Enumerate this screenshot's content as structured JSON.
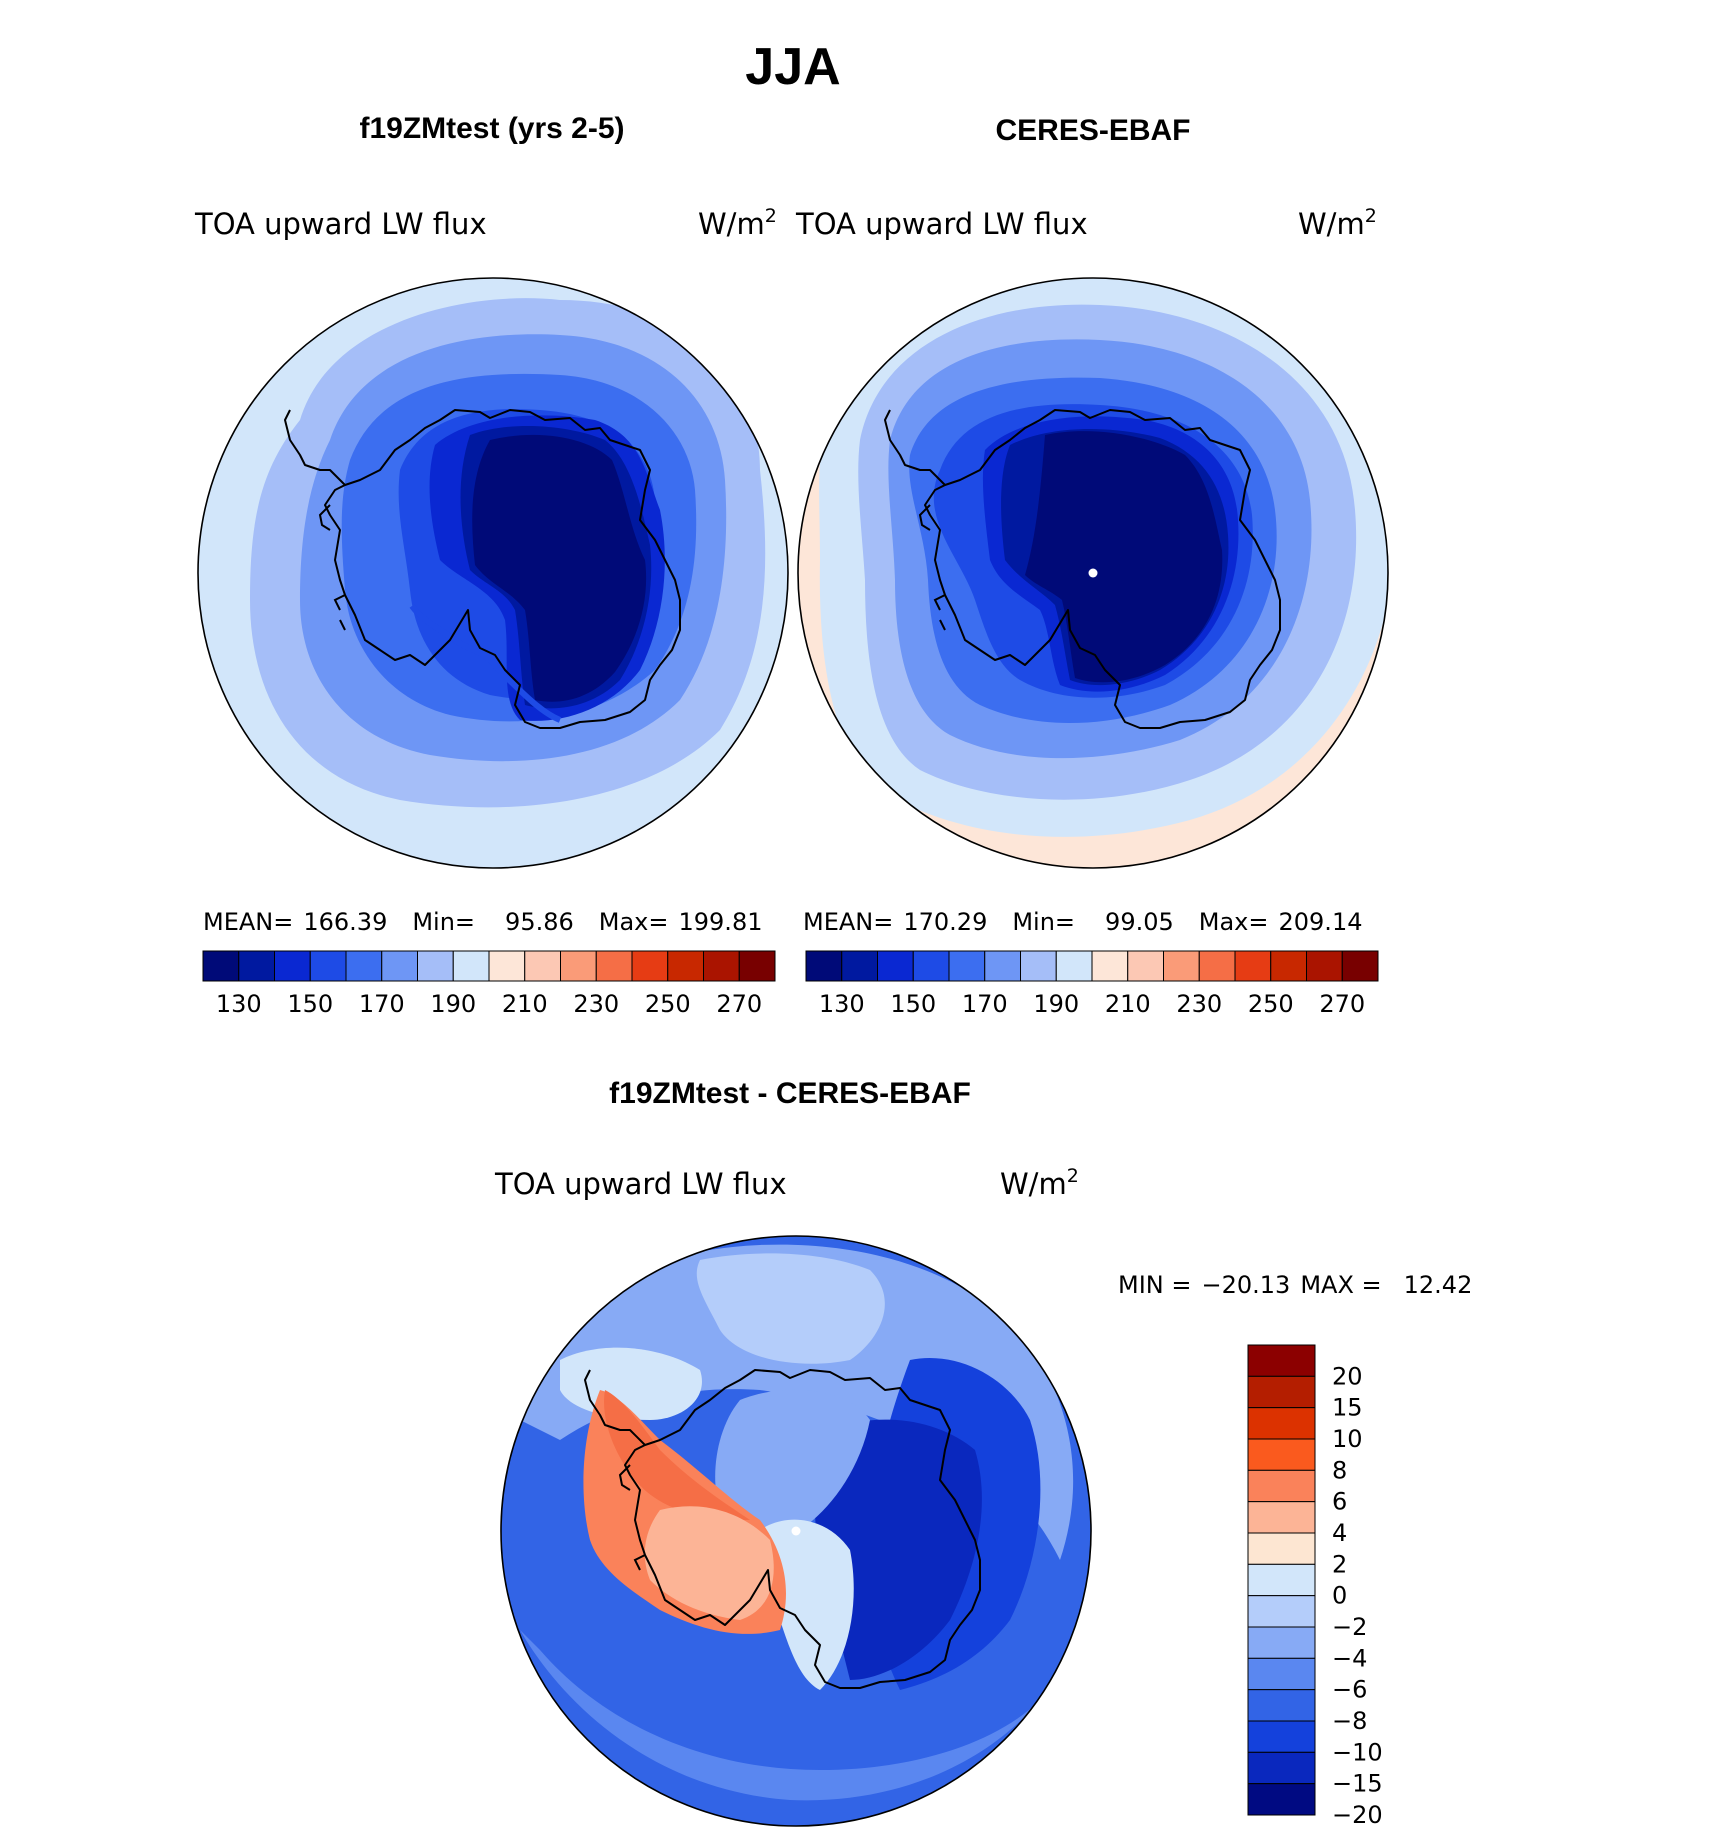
{
  "chart_data": [
    {
      "type": "heatmap",
      "figure_title": "JJA",
      "title": "f19ZMtest (yrs 2-5)",
      "left_label": "TOA upward LW flux",
      "units": "W/m",
      "units_exp": "2",
      "stats": {
        "mean_label": "MEAN=",
        "mean": "166.39",
        "min_label": "Min=",
        "min": "95.86",
        "max_label": "Max=",
        "max": "199.81"
      },
      "contour_levels": [
        130,
        140,
        150,
        160,
        170,
        180,
        190,
        200,
        210,
        220,
        230,
        240,
        250,
        260,
        270
      ],
      "colorbar_ticks": [
        "130",
        "150",
        "170",
        "190",
        "210",
        "230",
        "250",
        "270"
      ],
      "colors": [
        "#000a78",
        "#0019a0",
        "#0a28d2",
        "#1e4be6",
        "#3c6ef0",
        "#6e96f5",
        "#a5bef8",
        "#d2e6fa",
        "#fde6d8",
        "#fcc8b4",
        "#fa9b78",
        "#f56e46",
        "#e63c14",
        "#c82800",
        "#aa1400",
        "#780000"
      ],
      "field_bands": [
        {
          "value": "<130",
          "color": "#000a78"
        },
        {
          "value": "130-140",
          "color": "#0019a0"
        },
        {
          "value": "140-150",
          "color": "#0a28d2"
        },
        {
          "value": "150-160",
          "color": "#1e4be6"
        },
        {
          "value": "160-170",
          "color": "#3c6ef0"
        },
        {
          "value": "170-180",
          "color": "#6e96f5"
        },
        {
          "value": "180-190",
          "color": "#a5bef8"
        },
        {
          "value": "190-200",
          "color": "#d2e6fa"
        }
      ]
    },
    {
      "type": "heatmap",
      "title": "CERES-EBAF",
      "left_label": "TOA upward LW flux",
      "units": "W/m",
      "units_exp": "2",
      "stats": {
        "mean_label": "MEAN=",
        "mean": "170.29",
        "min_label": "Min=",
        "min": "99.05",
        "max_label": "Max=",
        "max": "209.14"
      },
      "contour_levels": [
        130,
        140,
        150,
        160,
        170,
        180,
        190,
        200,
        210,
        220,
        230,
        240,
        250,
        260,
        270
      ],
      "colorbar_ticks": [
        "130",
        "150",
        "170",
        "190",
        "210",
        "230",
        "250",
        "270"
      ],
      "colors": [
        "#000a78",
        "#0019a0",
        "#0a28d2",
        "#1e4be6",
        "#3c6ef0",
        "#6e96f5",
        "#a5bef8",
        "#d2e6fa",
        "#fde6d8",
        "#fcc8b4",
        "#fa9b78",
        "#f56e46",
        "#e63c14",
        "#c82800",
        "#aa1400",
        "#780000"
      ],
      "field_bands": [
        {
          "value": "<130",
          "color": "#000a78"
        },
        {
          "value": "130-140",
          "color": "#0019a0"
        },
        {
          "value": "140-150",
          "color": "#0a28d2"
        },
        {
          "value": "150-160",
          "color": "#1e4be6"
        },
        {
          "value": "160-170",
          "color": "#3c6ef0"
        },
        {
          "value": "170-180",
          "color": "#6e96f5"
        },
        {
          "value": "180-190",
          "color": "#a5bef8"
        },
        {
          "value": "190-200",
          "color": "#d2e6fa"
        },
        {
          "value": "200-210",
          "color": "#fde6d8"
        }
      ]
    },
    {
      "type": "heatmap",
      "title": "f19ZMtest - CERES-EBAF",
      "left_label": "TOA upward LW flux",
      "units": "W/m",
      "units_exp": "2",
      "minmax": {
        "min_label": "MIN =",
        "min": "−20.13",
        "max_label": "MAX =",
        "max": "12.42"
      },
      "contour_levels": [
        -20,
        -15,
        -10,
        -8,
        -6,
        -4,
        -2,
        0,
        2,
        4,
        6,
        8,
        10,
        15,
        20
      ],
      "colorbar_ticks": [
        "20",
        "15",
        "10",
        "8",
        "6",
        "4",
        "2",
        "0",
        "−2",
        "−4",
        "−6",
        "−8",
        "−10",
        "−15",
        "−20"
      ],
      "colors_top_to_bottom": [
        "#8c0000",
        "#b41e00",
        "#dc3200",
        "#fa5a1e",
        "#fa825a",
        "#fcb496",
        "#fde6d2",
        "#d2e6fa",
        "#b4cdfa",
        "#87aaf5",
        "#5a87f0",
        "#3264e6",
        "#1441dc",
        "#0a28be",
        "#000a82"
      ]
    }
  ]
}
